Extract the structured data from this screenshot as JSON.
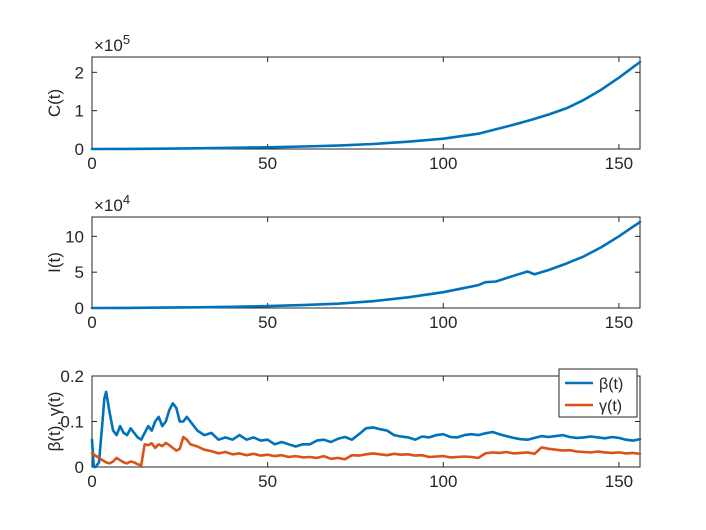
{
  "colors": {
    "blue": "#0072BD",
    "orange": "#D95319"
  },
  "chart_data": [
    {
      "type": "line",
      "id": "cumulative",
      "ylabel": "C(t)",
      "exponent_label": "×10^5",
      "exponent_base": "×10",
      "exponent_power": "5",
      "xlim": [
        0,
        156
      ],
      "ylim": [
        0,
        2.4
      ],
      "xticks": [
        0,
        50,
        100,
        150
      ],
      "xtick_labels": [
        "0",
        "50",
        "100",
        "150"
      ],
      "yticks": [
        0,
        1,
        2
      ],
      "ytick_labels": [
        "0",
        "1",
        "2"
      ],
      "series": [
        {
          "name": "C(t)",
          "color": "#0072BD",
          "x": [
            0,
            10,
            20,
            30,
            40,
            50,
            60,
            70,
            80,
            90,
            100,
            110,
            120,
            125,
            130,
            135,
            140,
            145,
            150,
            156
          ],
          "y": [
            0,
            0.003,
            0.008,
            0.018,
            0.03,
            0.045,
            0.065,
            0.09,
            0.13,
            0.19,
            0.27,
            0.4,
            0.63,
            0.76,
            0.9,
            1.06,
            1.28,
            1.55,
            1.86,
            2.27
          ]
        }
      ]
    },
    {
      "type": "line",
      "id": "infected",
      "ylabel": "I(t)",
      "exponent_label": "×10^4",
      "exponent_base": "×10",
      "exponent_power": "4",
      "xlim": [
        0,
        156
      ],
      "ylim": [
        0,
        12.7
      ],
      "xticks": [
        0,
        50,
        100,
        150
      ],
      "xtick_labels": [
        "0",
        "50",
        "100",
        "150"
      ],
      "yticks": [
        0,
        5,
        10
      ],
      "ytick_labels": [
        "0",
        "5",
        "10"
      ],
      "series": [
        {
          "name": "I(t)",
          "color": "#0072BD",
          "x": [
            0,
            10,
            20,
            30,
            40,
            50,
            60,
            70,
            80,
            90,
            100,
            105,
            110,
            112,
            115,
            120,
            124,
            126,
            130,
            135,
            140,
            145,
            150,
            156
          ],
          "y": [
            0,
            0.02,
            0.05,
            0.1,
            0.17,
            0.26,
            0.4,
            0.6,
            0.95,
            1.5,
            2.2,
            2.7,
            3.2,
            3.6,
            3.7,
            4.5,
            5.1,
            4.7,
            5.3,
            6.2,
            7.2,
            8.5,
            10.0,
            12.0
          ]
        }
      ]
    },
    {
      "type": "line",
      "id": "rates",
      "ylabel": "β(t), γ(t)",
      "xlim": [
        0,
        156
      ],
      "ylim": [
        0,
        0.2
      ],
      "xticks": [
        0,
        50,
        100,
        150
      ],
      "xtick_labels": [
        "0",
        "50",
        "100",
        "150"
      ],
      "yticks": [
        0,
        0.1,
        0.2
      ],
      "ytick_labels": [
        "0",
        "0.1",
        "0.2"
      ],
      "legend_position": "top-right",
      "legend": [
        "β(t)",
        "γ(t)"
      ],
      "series": [
        {
          "name": "β(t)",
          "color": "#0072BD",
          "x": [
            0,
            0.5,
            1,
            2,
            3,
            3.5,
            4,
            5,
            6,
            7,
            8,
            9,
            10,
            11,
            12,
            13,
            14,
            15,
            16,
            17,
            18,
            19,
            20,
            21,
            22,
            23,
            24,
            25,
            26,
            27,
            28,
            30,
            32,
            34,
            36,
            38,
            40,
            42,
            44,
            46,
            48,
            50,
            52,
            54,
            56,
            58,
            60,
            62,
            64,
            66,
            68,
            70,
            72,
            74,
            76,
            78,
            80,
            82,
            84,
            86,
            88,
            90,
            92,
            94,
            96,
            98,
            100,
            102,
            104,
            106,
            108,
            110,
            112,
            114,
            116,
            118,
            120,
            122,
            124,
            126,
            128,
            130,
            132,
            134,
            136,
            138,
            140,
            142,
            144,
            146,
            148,
            150,
            152,
            154,
            156
          ],
          "y": [
            0.06,
            0,
            0,
            0.01,
            0.1,
            0.15,
            0.165,
            0.12,
            0.08,
            0.07,
            0.09,
            0.075,
            0.07,
            0.085,
            0.075,
            0.065,
            0.06,
            0.075,
            0.09,
            0.08,
            0.1,
            0.11,
            0.09,
            0.1,
            0.125,
            0.14,
            0.13,
            0.1,
            0.1,
            0.11,
            0.1,
            0.08,
            0.07,
            0.075,
            0.06,
            0.065,
            0.06,
            0.07,
            0.06,
            0.065,
            0.058,
            0.06,
            0.05,
            0.055,
            0.05,
            0.045,
            0.05,
            0.05,
            0.058,
            0.06,
            0.055,
            0.062,
            0.066,
            0.06,
            0.072,
            0.085,
            0.087,
            0.083,
            0.08,
            0.07,
            0.067,
            0.065,
            0.06,
            0.067,
            0.065,
            0.07,
            0.072,
            0.066,
            0.065,
            0.07,
            0.072,
            0.07,
            0.074,
            0.077,
            0.072,
            0.068,
            0.064,
            0.061,
            0.06,
            0.064,
            0.068,
            0.066,
            0.068,
            0.07,
            0.066,
            0.064,
            0.065,
            0.067,
            0.065,
            0.063,
            0.066,
            0.064,
            0.06,
            0.058,
            0.061
          ]
        },
        {
          "name": "γ(t)",
          "color": "#D95319",
          "x": [
            0,
            1,
            2,
            3,
            4,
            5,
            6,
            7,
            8,
            9,
            10,
            11,
            12,
            13,
            14,
            15,
            16,
            17,
            18,
            19,
            20,
            21,
            22,
            23,
            24,
            25,
            26,
            27,
            28,
            30,
            32,
            34,
            36,
            38,
            40,
            42,
            44,
            46,
            48,
            50,
            52,
            54,
            56,
            58,
            60,
            62,
            64,
            66,
            68,
            70,
            72,
            74,
            76,
            78,
            80,
            82,
            84,
            86,
            88,
            90,
            92,
            94,
            96,
            98,
            100,
            102,
            104,
            106,
            108,
            110,
            112,
            114,
            116,
            118,
            120,
            122,
            124,
            126,
            128,
            130,
            132,
            134,
            136,
            138,
            140,
            142,
            144,
            146,
            148,
            150,
            152,
            154,
            156
          ],
          "y": [
            0.03,
            0.025,
            0.02,
            0.015,
            0.01,
            0.008,
            0.012,
            0.02,
            0.015,
            0.01,
            0.008,
            0.012,
            0.01,
            0.006,
            0.004,
            0.05,
            0.048,
            0.052,
            0.042,
            0.05,
            0.046,
            0.053,
            0.048,
            0.042,
            0.036,
            0.04,
            0.066,
            0.06,
            0.05,
            0.045,
            0.038,
            0.035,
            0.03,
            0.033,
            0.028,
            0.03,
            0.026,
            0.029,
            0.025,
            0.027,
            0.024,
            0.026,
            0.022,
            0.024,
            0.021,
            0.022,
            0.02,
            0.024,
            0.018,
            0.02,
            0.017,
            0.026,
            0.025,
            0.028,
            0.03,
            0.028,
            0.026,
            0.029,
            0.027,
            0.028,
            0.025,
            0.026,
            0.022,
            0.023,
            0.024,
            0.021,
            0.022,
            0.023,
            0.022,
            0.02,
            0.03,
            0.032,
            0.031,
            0.033,
            0.03,
            0.031,
            0.032,
            0.029,
            0.043,
            0.04,
            0.038,
            0.036,
            0.037,
            0.034,
            0.033,
            0.032,
            0.034,
            0.032,
            0.031,
            0.032,
            0.03,
            0.031,
            0.029
          ]
        }
      ]
    }
  ]
}
